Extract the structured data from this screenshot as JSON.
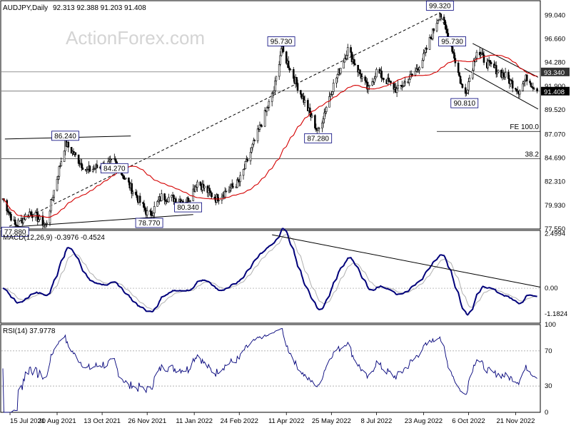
{
  "chart_data": [
    {
      "type": "candlestick",
      "title": "AUDJPY,Daily",
      "ohlc": "92.313 92.388 91.203 91.408",
      "watermark": "ActionForex.com",
      "ylim": [
        77.55,
        100.5
      ],
      "y_ticks": [
        "99.040",
        "96.660",
        "94.280",
        "91.900",
        "89.520",
        "87.070",
        "84.690",
        "82.310",
        "79.930",
        "77.550"
      ],
      "price_tags": [
        {
          "label": "93.340",
          "value": 93.34,
          "style": "dark"
        },
        {
          "label": "91.408",
          "value": 91.408,
          "style": "black"
        }
      ],
      "annotations": [
        {
          "label": "77.880",
          "date": "2021-07-20",
          "value": 77.88
        },
        {
          "label": "86.240",
          "date": "2021-09-07",
          "value": 86.24
        },
        {
          "label": "84.270",
          "date": "2021-10-25",
          "value": 84.27
        },
        {
          "label": "78.770",
          "date": "2021-11-28",
          "value": 78.77
        },
        {
          "label": "80.340",
          "date": "2022-01-05",
          "value": 80.34
        },
        {
          "label": "95.730",
          "date": "2022-04-06",
          "value": 95.73
        },
        {
          "label": "87.280",
          "date": "2022-05-12",
          "value": 87.28
        },
        {
          "label": "99.320",
          "date": "2022-09-08",
          "value": 99.32
        },
        {
          "label": "95.730",
          "date": "2022-09-20",
          "value": 95.73
        },
        {
          "label": "90.810",
          "date": "2022-10-02",
          "value": 90.81
        }
      ],
      "fib_labels": [
        {
          "label": "FE 100.0",
          "value": 87.36
        },
        {
          "label": "38.2",
          "value": 84.61
        }
      ],
      "horizontal_levels": [
        93.34,
        91.408,
        84.61
      ],
      "ma_color": "#d40000",
      "candle_color": "#000000"
    },
    {
      "type": "line",
      "title": "MACD(12,26,9) -0.3976 -0.4524",
      "y_ticks": [
        "2.4994",
        "0.00",
        "-1.1824"
      ],
      "ylim": [
        -1.6,
        2.65
      ],
      "series_colors": [
        "#00007a",
        "#b0b0b0"
      ]
    },
    {
      "type": "line",
      "title": "RSI(14) 37.9778",
      "y_ticks": [
        "100",
        "70",
        "30",
        "0"
      ],
      "ylim": [
        0,
        100
      ],
      "line_color": "#00007a"
    }
  ],
  "x_ticks": [
    "15 Jul 2021",
    "30 Aug 2021",
    "13 Oct 2021",
    "26 Nov 2021",
    "11 Jan 2022",
    "24 Feb 2022",
    "11 Apr 2022",
    "25 May 2022",
    "8 Jul 2022",
    "23 Aug 2022",
    "6 Oct 2022",
    "21 Nov 2022"
  ]
}
